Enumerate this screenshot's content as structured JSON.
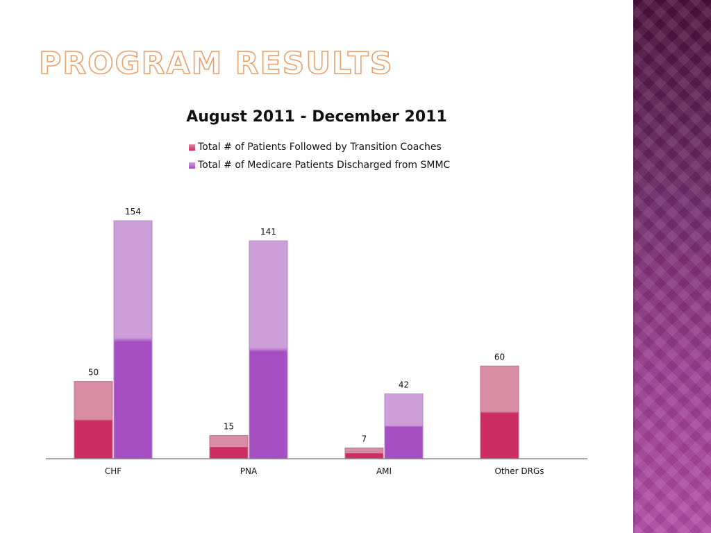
{
  "slide": {
    "title": "Program Results"
  },
  "colors": {
    "series1_top": "#d98da5",
    "series1_bottom": "#cc2d63",
    "series2_top": "#cc9fd8",
    "series2_bottom": "#a54fc2",
    "axis": "#8c8c8c",
    "title_stroke": "#e7a06a"
  },
  "chart_data": {
    "type": "bar",
    "title": "August 2011 - December 2011",
    "categories": [
      "CHF",
      "PNA",
      "AMI",
      "Other DRGs"
    ],
    "series": [
      {
        "name": "Total # of Patients Followed by Transition Coaches",
        "values": [
          50,
          15,
          7,
          60
        ]
      },
      {
        "name": "Total # of Medicare Patients Discharged from SMMC",
        "values": [
          154,
          141,
          42,
          null
        ]
      }
    ],
    "xlabel": "",
    "ylabel": "",
    "ylim": [
      0,
      154
    ],
    "grid": false,
    "legend": "top"
  }
}
